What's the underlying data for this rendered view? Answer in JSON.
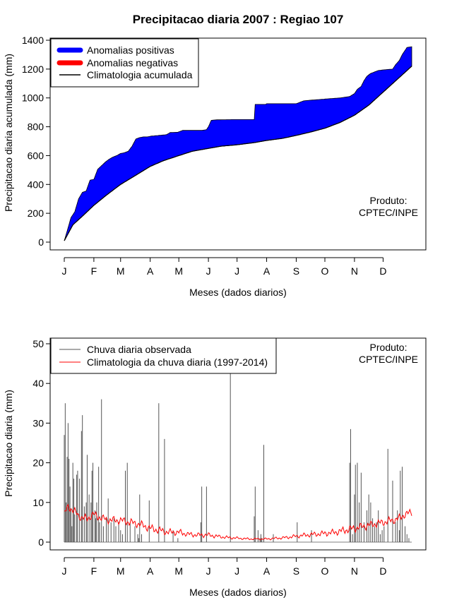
{
  "title": "Precipitacao diaria 2007 : Regiao 107",
  "colors": {
    "positive": "#0000ff",
    "negative": "#ff0000",
    "climatology_line": "#000000",
    "daily_bars": "#555555",
    "daily_climatology": "#ff0000"
  },
  "chart_data": [
    {
      "type": "area",
      "name": "accumulated",
      "ylabel": "Precipitacao diaria acumulada (mm)",
      "xlabel": "Meses (dados diarios)",
      "ylim": [
        0,
        1400
      ],
      "xlim": [
        1,
        365
      ],
      "yticks": [
        0,
        200,
        400,
        600,
        800,
        1000,
        1200,
        1400
      ],
      "month_labels": [
        "J",
        "F",
        "M",
        "A",
        "M",
        "J",
        "J",
        "A",
        "S",
        "O",
        "N",
        "D"
      ],
      "month_days": [
        1,
        32,
        60,
        91,
        121,
        152,
        182,
        213,
        244,
        274,
        305,
        335
      ],
      "legend": [
        "Anomalias positivas",
        "Anomalias negativas",
        "Climatologia acumulada"
      ],
      "annotation": [
        "Produto:",
        "CPTEC/INPE"
      ],
      "climatology_acc": {
        "days": [
          1,
          10,
          20,
          32,
          45,
          60,
          75,
          91,
          105,
          121,
          135,
          152,
          165,
          182,
          200,
          213,
          230,
          244,
          260,
          274,
          290,
          305,
          320,
          335,
          350,
          365
        ],
        "values": [
          10,
          120,
          180,
          255,
          325,
          400,
          460,
          525,
          565,
          600,
          630,
          650,
          665,
          675,
          690,
          705,
          720,
          740,
          765,
          790,
          830,
          880,
          950,
          1040,
          1130,
          1220
        ]
      },
      "observed_acc": {
        "days": [
          1,
          5,
          8,
          12,
          16,
          20,
          24,
          28,
          32,
          36,
          40,
          44,
          48,
          52,
          56,
          60,
          64,
          68,
          72,
          76,
          80,
          84,
          88,
          92,
          100,
          108,
          112,
          120,
          125,
          145,
          150,
          152,
          155,
          160,
          180,
          200,
          201,
          212,
          213,
          230,
          244,
          252,
          260,
          270,
          290,
          300,
          305,
          308,
          312,
          315,
          318,
          322,
          326,
          330,
          336,
          345,
          348,
          352,
          355,
          360,
          365
        ],
        "values": [
          10,
          100,
          170,
          210,
          300,
          345,
          355,
          430,
          435,
          505,
          530,
          555,
          575,
          590,
          600,
          615,
          620,
          630,
          665,
          715,
          725,
          730,
          730,
          735,
          740,
          745,
          760,
          762,
          775,
          775,
          780,
          800,
          845,
          848,
          850,
          850,
          955,
          955,
          960,
          960,
          960,
          980,
          985,
          990,
          1000,
          1010,
          1030,
          1060,
          1080,
          1120,
          1150,
          1170,
          1180,
          1190,
          1195,
          1200,
          1230,
          1260,
          1300,
          1350,
          1355
        ]
      }
    },
    {
      "type": "bar",
      "name": "daily",
      "ylabel": "Precipitacao diaria (mm)",
      "xlabel": "Meses (dados diarios)",
      "ylim": [
        0,
        50
      ],
      "xlim": [
        1,
        365
      ],
      "yticks": [
        0,
        10,
        20,
        30,
        40,
        50
      ],
      "month_labels": [
        "J",
        "F",
        "M",
        "A",
        "M",
        "J",
        "J",
        "A",
        "S",
        "O",
        "N",
        "D"
      ],
      "month_days": [
        1,
        32,
        60,
        91,
        121,
        152,
        182,
        213,
        244,
        274,
        305,
        335
      ],
      "legend": [
        "Chuva diaria observada",
        "Climatologia da chuva diaria (1997-2014)"
      ],
      "annotation": [
        "Produto:",
        "CPTEC/INPE"
      ],
      "observed_daily": {
        "days": [
          1,
          2,
          3,
          4,
          5,
          6,
          7,
          8,
          9,
          10,
          11,
          12,
          14,
          15,
          17,
          19,
          20,
          22,
          24,
          25,
          27,
          29,
          30,
          31,
          33,
          34,
          35,
          37,
          38,
          40,
          42,
          45,
          47,
          50,
          53,
          55,
          58,
          60,
          62,
          65,
          67,
          70,
          75,
          78,
          79,
          80,
          82,
          90,
          100,
          106,
          115,
          120,
          144,
          145,
          150,
          175,
          200,
          201,
          204,
          206,
          207,
          208,
          210,
          220,
          245,
          260,
          300,
          301,
          303,
          305,
          306,
          308,
          310,
          312,
          315,
          318,
          320,
          322,
          324,
          326,
          328,
          330,
          332,
          334,
          336,
          340,
          345,
          348,
          350,
          352,
          353,
          355,
          358,
          360,
          362
        ],
        "values": [
          27,
          35,
          10,
          21.5,
          30,
          21,
          14,
          8,
          4,
          20,
          16,
          7,
          17,
          18,
          16,
          28,
          32,
          9,
          10,
          22,
          12,
          10,
          18,
          20,
          8,
          6,
          10,
          19,
          5,
          36,
          4,
          6,
          11,
          5,
          6,
          4,
          5,
          3,
          2,
          18,
          20,
          5,
          4,
          2,
          1,
          12,
          2,
          10.5,
          35,
          26,
          3,
          1,
          5,
          14,
          14,
          43,
          6.5,
          14,
          3,
          1,
          2,
          1,
          24.5,
          2,
          5,
          3,
          20,
          28.5,
          2,
          12,
          19.5,
          20,
          10,
          17.5,
          5,
          8,
          12,
          10,
          6,
          4,
          5,
          8,
          2,
          3,
          4,
          23.5,
          15.5,
          5,
          8,
          3,
          18,
          19,
          4,
          2,
          1
        ]
      },
      "climatology_daily": {
        "days": [
          1,
          5,
          10,
          15,
          20,
          25,
          32,
          40,
          50,
          60,
          70,
          80,
          91,
          100,
          110,
          121,
          130,
          140,
          152,
          160,
          170,
          182,
          195,
          205,
          213,
          225,
          235,
          244,
          255,
          265,
          274,
          285,
          295,
          305,
          315,
          325,
          335,
          345,
          352,
          358,
          365
        ],
        "values": [
          7,
          9,
          8,
          7,
          6,
          6,
          7,
          6,
          5.5,
          5.5,
          5,
          4.5,
          3.5,
          3,
          2.5,
          2.5,
          2,
          1.8,
          1.8,
          1.5,
          1.2,
          1,
          0.8,
          0.8,
          0.8,
          1,
          1.2,
          1.5,
          1.8,
          2,
          2.2,
          2.5,
          3,
          3.5,
          4,
          4.5,
          5,
          5.5,
          6,
          7,
          7.5
        ]
      }
    }
  ]
}
